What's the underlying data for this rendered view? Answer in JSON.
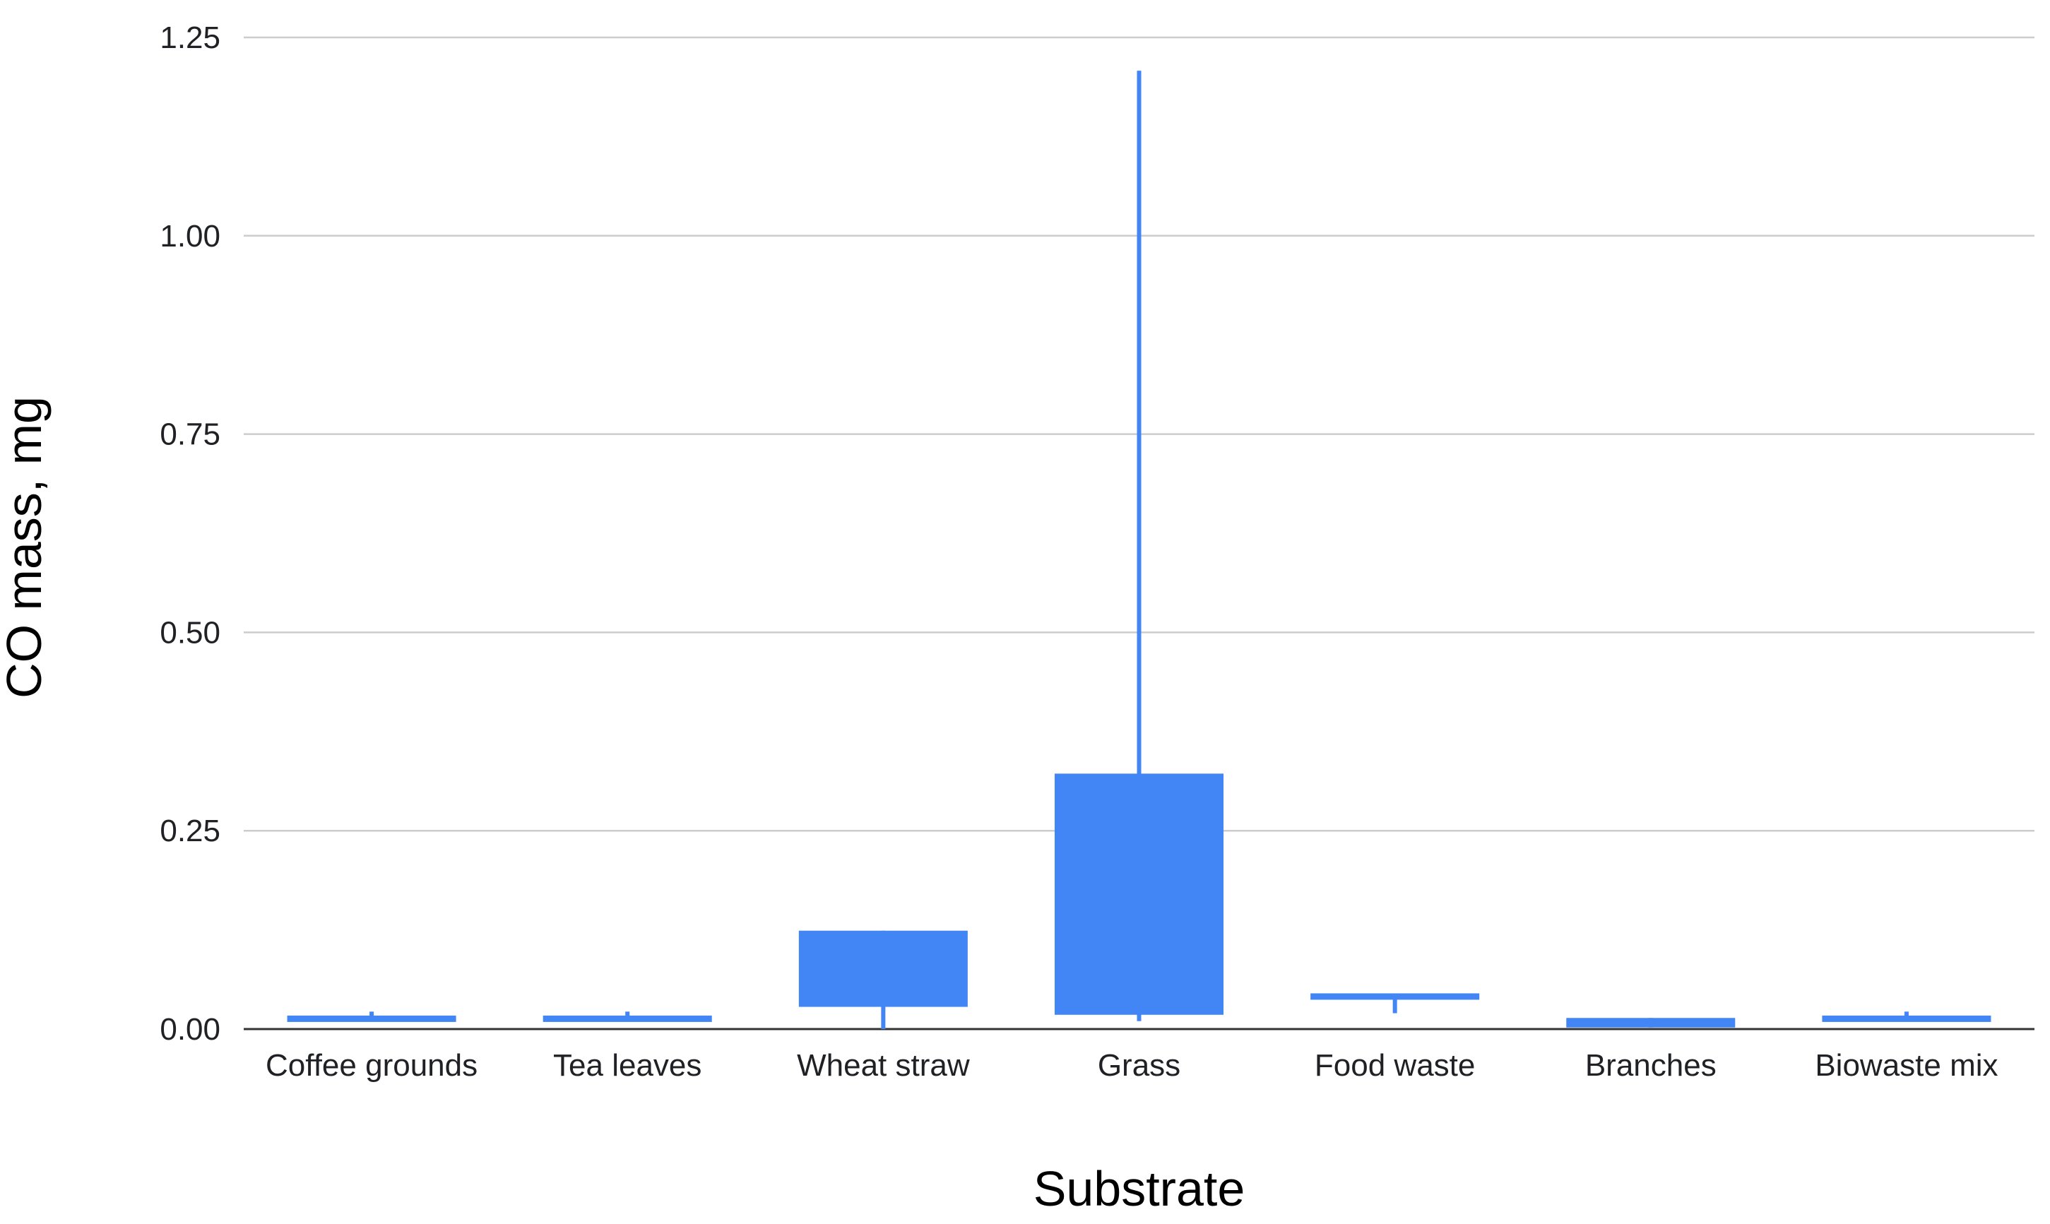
{
  "chart_data": {
    "type": "candlestick",
    "xlabel": "Substrate",
    "ylabel": "CO mass, mg",
    "ylim": [
      0,
      1.25
    ],
    "yticks": [
      "0.00",
      "0.25",
      "0.50",
      "0.75",
      "1.00",
      "1.25"
    ],
    "ytick_values": [
      0,
      0.25,
      0.5,
      0.75,
      1.0,
      1.25
    ],
    "grid": true,
    "color": "#4285f4",
    "categories": [
      "Coffee grounds",
      "Tea leaves",
      "Wheat straw",
      "Grass",
      "Food waste",
      "Branches",
      "Biowaste mix"
    ],
    "series": [
      {
        "category": "Coffee grounds",
        "low": 0.01,
        "box_low": 0.01,
        "box_high": 0.016,
        "high": 0.022
      },
      {
        "category": "Tea leaves",
        "low": 0.01,
        "box_low": 0.01,
        "box_high": 0.016,
        "high": 0.022
      },
      {
        "category": "Wheat straw",
        "low": 0.0,
        "box_low": 0.028,
        "box_high": 0.124,
        "high": 0.124
      },
      {
        "category": "Grass",
        "low": 0.01,
        "box_low": 0.018,
        "box_high": 0.322,
        "high": 1.208
      },
      {
        "category": "Food waste",
        "low": 0.02,
        "box_low": 0.038,
        "box_high": 0.044,
        "high": 0.044
      },
      {
        "category": "Branches",
        "low": 0.002,
        "box_low": 0.002,
        "box_high": 0.014,
        "high": 0.014
      },
      {
        "category": "Biowaste mix",
        "low": 0.01,
        "box_low": 0.01,
        "box_high": 0.016,
        "high": 0.022
      }
    ]
  }
}
